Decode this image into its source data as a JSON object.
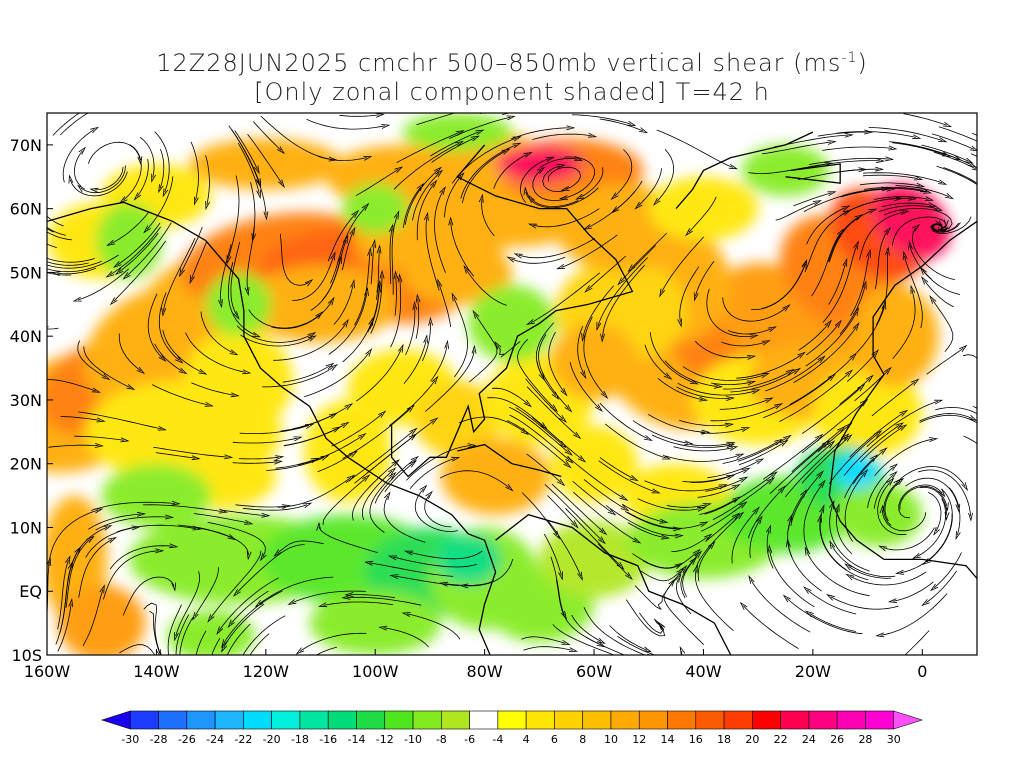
{
  "title": {
    "line1_prefix": "12Z28JUN2025 cmchr 500–850mb vertical shear (ms",
    "line1_sup": "-1",
    "line1_suffix": ")",
    "line2": "[Only zonal component shaded] T=42 h"
  },
  "map": {
    "lat_labels": [
      "70N",
      "60N",
      "50N",
      "40N",
      "30N",
      "20N",
      "10N",
      "EQ",
      "10S"
    ],
    "lat_values": [
      70,
      60,
      50,
      40,
      30,
      20,
      10,
      0,
      -10
    ],
    "lon_labels": [
      "160W",
      "140W",
      "120W",
      "100W",
      "80W",
      "60W",
      "40W",
      "20W",
      "0"
    ],
    "lon_values": [
      -160,
      -140,
      -120,
      -100,
      -80,
      -60,
      -40,
      -20,
      0
    ],
    "lon_range": [
      -160,
      10
    ],
    "lat_range": [
      -10,
      75
    ],
    "shaded_field": "zonal component of vertical shear",
    "overlay": "streamlines"
  },
  "colorbar": {
    "labels": [
      "-30",
      "-28",
      "-26",
      "-24",
      "-22",
      "-20",
      "-18",
      "-16",
      "-14",
      "-12",
      "-10",
      "-8",
      "-6",
      "-4",
      "4",
      "6",
      "8",
      "10",
      "12",
      "14",
      "16",
      "18",
      "20",
      "22",
      "24",
      "26",
      "28",
      "30"
    ],
    "colors": [
      "#1a00f0",
      "#1e3cff",
      "#1e6eff",
      "#1e96ff",
      "#1eb4ff",
      "#00dcff",
      "#00f0dc",
      "#00e6a0",
      "#00dc78",
      "#1edc46",
      "#50e61e",
      "#82eb1e",
      "#afe61e",
      "#ffffff",
      "#ffff00",
      "#ffe600",
      "#ffd200",
      "#ffbe00",
      "#ffaa00",
      "#ff9600",
      "#ff7800",
      "#ff5a00",
      "#ff3c00",
      "#ff0000",
      "#ff0050",
      "#ff0082",
      "#ff00b4",
      "#ff00d2",
      "#ff50ff"
    ]
  }
}
